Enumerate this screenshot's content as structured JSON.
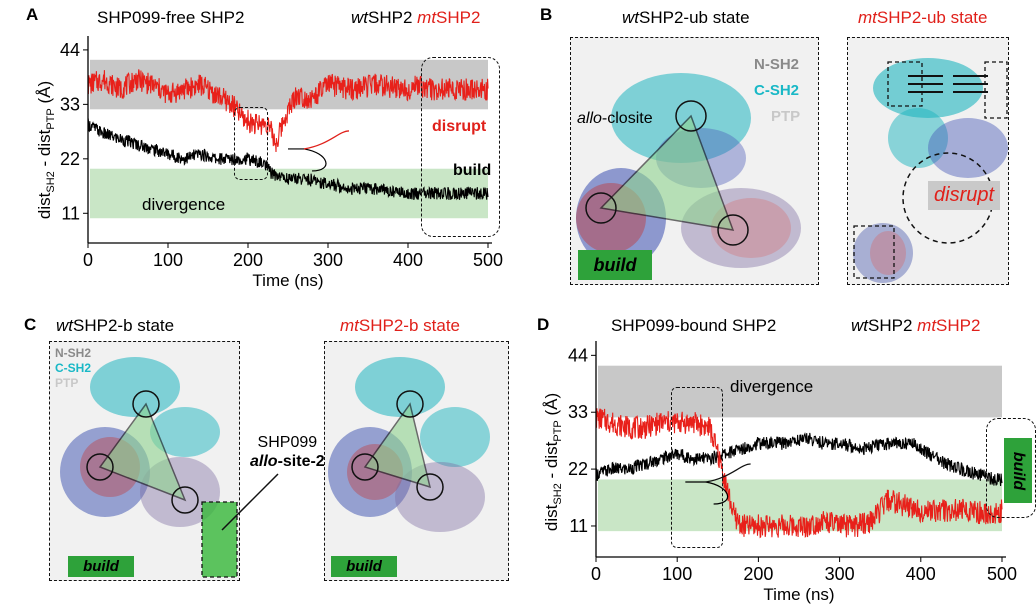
{
  "panels": {
    "A": {
      "label": "A",
      "title": "SHP099-free SHP2",
      "legend_wt_prefix": "wt",
      "legend_wt_suffix": "SHP2",
      "legend_mt_prefix": "mt",
      "legend_mt_suffix": "SHP2",
      "ann_disrupt": "disrupt",
      "ann_build": "build",
      "ann_divergence": "divergence"
    },
    "B": {
      "label": "B",
      "left_title_prefix": "wt",
      "left_title_suffix": "SHP2-ub state",
      "right_title_prefix": "mt",
      "right_title_suffix": "SHP2-ub state",
      "legend": [
        "N-SH2",
        "C-SH2",
        "PTP"
      ],
      "allo_prefix": "allo",
      "allo_suffix": "-closite",
      "build": "build",
      "disrupt": "disrupt"
    },
    "C": {
      "label": "C",
      "left_title_prefix": "wt",
      "left_title_suffix": "SHP2-b state",
      "right_title_prefix": "mt",
      "right_title_suffix": "SHP2-b state",
      "legend": [
        "N-SH2",
        "C-SH2",
        "PTP"
      ],
      "site_line1": "SHP099",
      "site_prefix": "allo",
      "site_suffix": "-site-2",
      "build_left": "build",
      "build_right": "build"
    },
    "D": {
      "label": "D",
      "title": "SHP099-bound SHP2",
      "legend_wt_prefix": "wt",
      "legend_wt_suffix": "SHP2",
      "legend_mt_prefix": "mt",
      "legend_mt_suffix": "SHP2",
      "ann_divergence": "divergence",
      "ann_build": "build"
    }
  },
  "colors": {
    "wt": "#000000",
    "mt": "#e8201a",
    "divergence_band": "#c8c8c8",
    "build_band": "#c9e6c6",
    "build_box": "#2ea23a",
    "csh2": "#19b8c6"
  },
  "chart_data": [
    {
      "type": "line",
      "title": "SHP099-free SHP2",
      "xlabel": "Time (ns)",
      "ylabel": "dist_SH2 - dist_PTP (Å)",
      "xlim": [
        0,
        500
      ],
      "ylim": [
        5,
        46
      ],
      "xticks": [
        0,
        100,
        200,
        300,
        400,
        500
      ],
      "yticks": [
        11,
        22,
        33,
        44
      ],
      "bands": [
        {
          "y": [
            32,
            42
          ],
          "color": "divergence"
        },
        {
          "y": [
            10,
            20
          ],
          "color": "build"
        }
      ],
      "series": [
        {
          "name": "wtSHP2",
          "x": [
            0,
            20,
            40,
            60,
            80,
            100,
            120,
            140,
            160,
            180,
            200,
            220,
            230,
            250,
            270,
            300,
            330,
            360,
            400,
            430,
            460,
            490,
            500
          ],
          "y": [
            29,
            27,
            26,
            25,
            24,
            23,
            22,
            23,
            22,
            22,
            22,
            21,
            19,
            18,
            18,
            17,
            16,
            16,
            15,
            15,
            15,
            15,
            15
          ]
        },
        {
          "name": "mtSHP2",
          "x": [
            0,
            20,
            40,
            60,
            80,
            100,
            120,
            140,
            160,
            180,
            195,
            210,
            225,
            235,
            245,
            260,
            280,
            300,
            330,
            360,
            400,
            410,
            430,
            460,
            490,
            500
          ],
          "y": [
            37,
            38,
            36,
            38,
            37,
            35,
            36,
            37,
            35,
            33,
            30,
            29,
            29,
            25,
            30,
            35,
            34,
            37,
            36,
            37,
            36,
            37,
            36,
            36,
            36,
            36
          ]
        }
      ]
    },
    {
      "type": "line",
      "title": "SHP099-bound SHP2",
      "xlabel": "Time (ns)",
      "ylabel": "dist_SH2 - dist_PTP (Å)",
      "xlim": [
        0,
        500
      ],
      "ylim": [
        5,
        46
      ],
      "xticks": [
        0,
        100,
        200,
        300,
        400,
        500
      ],
      "yticks": [
        11,
        22,
        33,
        44
      ],
      "bands": [
        {
          "y": [
            32,
            42
          ],
          "color": "divergence"
        },
        {
          "y": [
            10,
            20
          ],
          "color": "build"
        }
      ],
      "series": [
        {
          "name": "wtSHP2",
          "x": [
            0,
            20,
            40,
            60,
            80,
            100,
            120,
            140,
            160,
            180,
            200,
            230,
            260,
            280,
            300,
            330,
            360,
            390,
            410,
            430,
            450,
            470,
            490,
            500
          ],
          "y": [
            21,
            22,
            22,
            23,
            24,
            25,
            24,
            24,
            25,
            26,
            27,
            27,
            28,
            27,
            27,
            26,
            27,
            27,
            25,
            23,
            22,
            21,
            20,
            20
          ]
        },
        {
          "name": "mtSHP2",
          "x": [
            0,
            20,
            40,
            60,
            80,
            100,
            120,
            140,
            150,
            160,
            170,
            180,
            200,
            230,
            260,
            280,
            300,
            320,
            340,
            360,
            380,
            400,
            430,
            460,
            490,
            500
          ],
          "y": [
            32,
            31,
            30,
            30,
            31,
            31,
            31,
            30,
            25,
            19,
            13,
            11,
            11,
            11,
            11,
            12,
            11,
            11,
            12,
            16,
            15,
            14,
            14,
            14,
            13,
            14
          ]
        }
      ]
    }
  ]
}
